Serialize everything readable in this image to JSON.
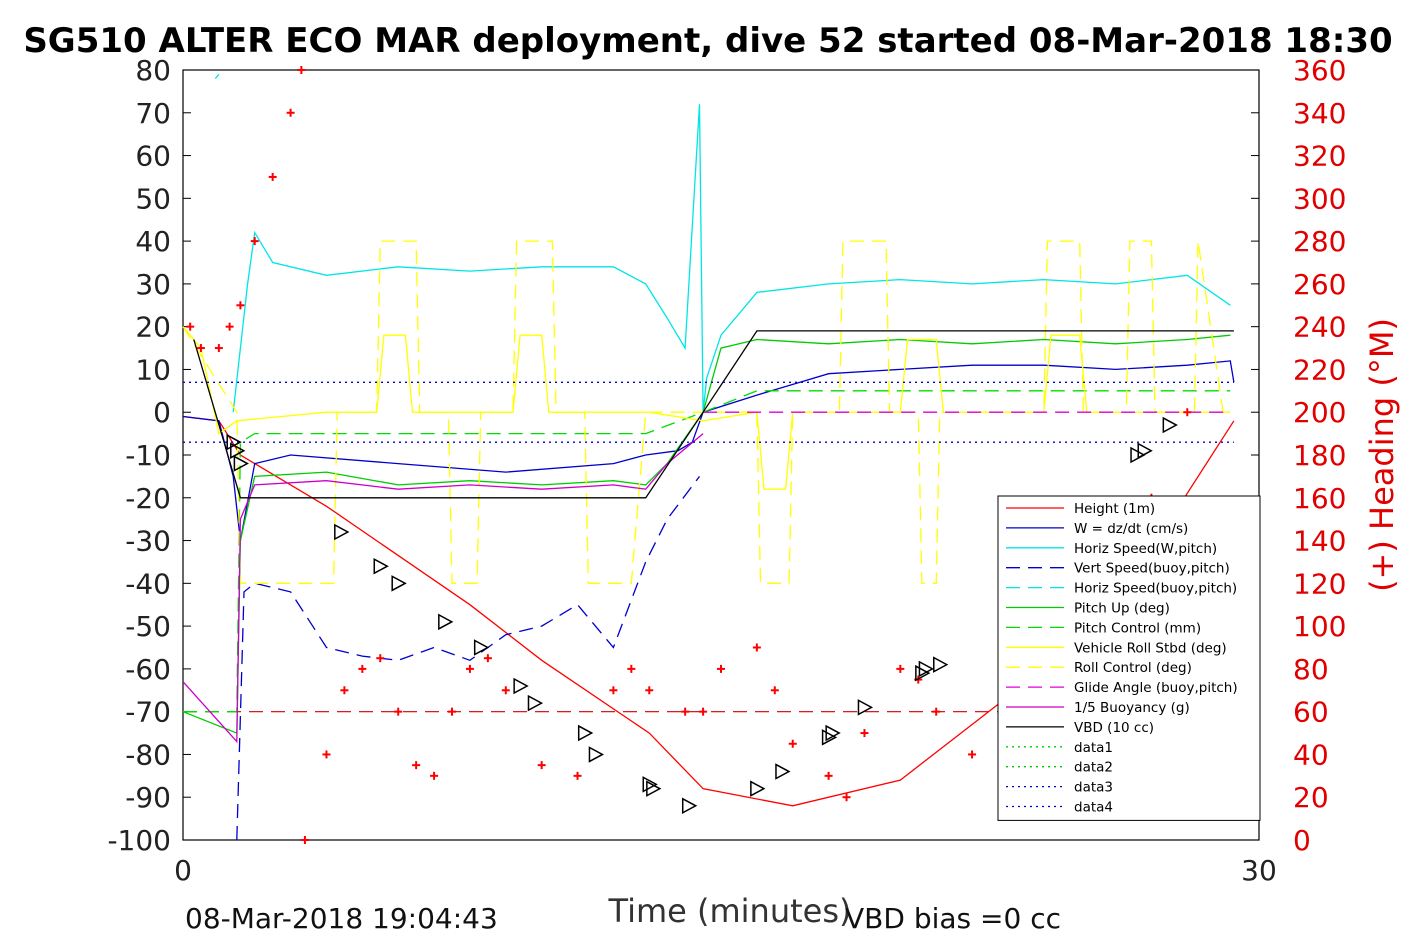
{
  "chart_data": {
    "type": "line",
    "title": "SG510 ALTER ECO MAR deployment, dive 52 started 08-Mar-2018 18:30",
    "xlabel": "Time (minutes)",
    "ylabel_left": "",
    "ylabel_right": "(+) Heading (°M)",
    "xlim": [
      0,
      30
    ],
    "ylim_left": [
      -100,
      80
    ],
    "ylim_right": [
      0,
      360
    ],
    "x_ticks": [
      "0",
      "30"
    ],
    "y_ticks_left": [
      "80",
      "70",
      "60",
      "50",
      "40",
      "30",
      "20",
      "10",
      "0",
      "-10",
      "-20",
      "-30",
      "-40",
      "-50",
      "-60",
      "-70",
      "-80",
      "-90",
      "-100"
    ],
    "y_ticks_right": [
      "360",
      "340",
      "320",
      "300",
      "280",
      "260",
      "240",
      "220",
      "200",
      "180",
      "160",
      "140",
      "120",
      "100",
      "80",
      "60",
      "40",
      "20",
      "0"
    ],
    "legend_position": "right",
    "colors": {
      "height": "#ff0000",
      "w": "#0000cc",
      "horiz_speed": "#00e5e5",
      "vert_speed": "#0000cc",
      "horiz_speed_buoy": "#00e5e5",
      "pitch_up": "#00cc00",
      "pitch_control": "#00dd00",
      "roll": "#ffff00",
      "roll_control": "#ffff00",
      "glide_angle": "#dd00dd",
      "buoyancy": "#cc00cc",
      "vbd": "#000000",
      "heading": "#ff0000"
    },
    "series": [
      {
        "name": "Height (1m)",
        "style": "solid",
        "color": "#ff0000",
        "x": [
          0,
          1,
          1.6,
          4,
          8,
          10,
          13,
          14.5,
          17,
          20,
          22,
          24,
          26,
          27,
          29.3
        ],
        "y": [
          -1,
          -2,
          -10,
          -22,
          -45,
          -58,
          -75,
          -88,
          -92,
          -86,
          -73,
          -60,
          -45,
          -32,
          -2
        ]
      },
      {
        "name": "W = dz/dt (cm/s)",
        "style": "solid",
        "color": "#0000cc",
        "x": [
          0,
          1,
          1.4,
          1.6,
          2,
          3,
          6,
          9,
          12,
          12.9,
          13.8,
          14.2,
          14.5,
          16,
          18,
          20,
          22,
          24,
          26,
          28,
          29.2,
          29.3
        ],
        "y": [
          -1,
          -2,
          -15,
          -30,
          -12,
          -10,
          -12,
          -14,
          -12,
          -10,
          -9,
          -7,
          0,
          4,
          9,
          10,
          11,
          11,
          10,
          11,
          12,
          7
        ]
      },
      {
        "name": "Horiz Speed(W,pitch)",
        "style": "solid",
        "color": "#00e5e5",
        "x": [
          1.4,
          1.8,
          2,
          2.5,
          4,
          6,
          8,
          10,
          12,
          12.9,
          13.5,
          14,
          14.4,
          14.5,
          14.6,
          15,
          16,
          18,
          20,
          22,
          24,
          26,
          28,
          29.2
        ],
        "y": [
          0,
          30,
          42,
          35,
          32,
          34,
          33,
          34,
          34,
          30,
          22,
          15,
          72,
          0,
          8,
          18,
          28,
          30,
          31,
          30,
          31,
          30,
          32,
          25
        ]
      },
      {
        "name": "Vert Speed(buoy,pitch)",
        "style": "dashed",
        "color": "#0000cc",
        "x": [
          1.5,
          1.7,
          2,
          3,
          4,
          5,
          6,
          7,
          8,
          9,
          10,
          11,
          12,
          12.9,
          13.5,
          14.4
        ],
        "y": [
          -100,
          -42,
          -40,
          -42,
          -55,
          -57,
          -58,
          -55,
          -58,
          -52,
          -50,
          -45,
          -55,
          -35,
          -25,
          -15
        ]
      },
      {
        "name": "Horiz Speed(buoy,pitch)",
        "style": "dashed",
        "color": "#00e5e5",
        "x": [
          0.9,
          1.0
        ],
        "y": [
          78,
          79
        ]
      },
      {
        "name": "Pitch Up (deg)",
        "style": "solid",
        "color": "#00cc00",
        "x": [
          0,
          1.5,
          1.6,
          2,
          4,
          6,
          8,
          10,
          12,
          12.9,
          13.5,
          14.5,
          15,
          16,
          18,
          20,
          22,
          24,
          26,
          28,
          29.2
        ],
        "y": [
          -70,
          -75,
          -30,
          -15,
          -14,
          -17,
          -16,
          -17,
          -16,
          -17,
          -12,
          0,
          15,
          17,
          16,
          17,
          16,
          17,
          16,
          17,
          18
        ]
      },
      {
        "name": "Pitch Control (mm)",
        "style": "dashed",
        "color": "#00dd00",
        "x": [
          0,
          1.5,
          1.6,
          2,
          12.9,
          14.5,
          16,
          29.2
        ],
        "y": [
          -70,
          -70,
          -7,
          -5,
          -5,
          0,
          5,
          5
        ]
      },
      {
        "name": "Vehicle Roll Stbd (deg)",
        "style": "solid",
        "color": "#ffff00",
        "x": [
          0,
          0.5,
          1,
          1.5,
          4,
          5.4,
          5.6,
          6.2,
          6.4,
          7,
          9.2,
          9.4,
          10,
          10.2,
          11,
          13,
          14.5,
          16,
          16.2,
          16.8,
          17,
          20,
          20.2,
          21,
          21.2,
          22,
          24,
          24.2,
          25,
          25.2,
          29.2
        ],
        "y": [
          20,
          15,
          -5,
          -2,
          0,
          0,
          18,
          18,
          0,
          0,
          0,
          18,
          18,
          0,
          0,
          0,
          -2,
          0,
          -18,
          -18,
          0,
          0,
          17,
          17,
          0,
          0,
          0,
          18,
          18,
          0,
          0
        ]
      },
      {
        "name": "Roll Control (deg)",
        "style": "dashed",
        "color": "#ffff00",
        "x": [
          0,
          1.5,
          1.6,
          4.2,
          4.3,
          5.4,
          5.5,
          6.5,
          6.6,
          7.4,
          7.5,
          8.2,
          8.3,
          9.2,
          9.3,
          10.3,
          10.4,
          11.2,
          11.3,
          12.5,
          12.9,
          14.5,
          16,
          16.1,
          16.9,
          17,
          18.3,
          18.4,
          19.6,
          19.7,
          20.5,
          20.6,
          21,
          21.1,
          22,
          22.1,
          24,
          24.1,
          25,
          25.1,
          26.3,
          26.4,
          27,
          27.1,
          28.2,
          28.3,
          29
        ],
        "y": [
          20,
          0,
          -40,
          -40,
          0,
          0,
          40,
          40,
          0,
          0,
          -40,
          -40,
          0,
          0,
          40,
          40,
          0,
          0,
          -40,
          -40,
          0,
          0,
          0,
          -40,
          -40,
          0,
          0,
          40,
          40,
          0,
          0,
          -40,
          -40,
          0,
          0,
          0,
          0,
          40,
          40,
          0,
          0,
          40,
          40,
          0,
          0,
          40,
          0
        ]
      },
      {
        "name": "Glide Angle (buoy,pitch)",
        "style": "dashed",
        "color": "#dd00dd",
        "x": [
          14.5,
          29.2
        ],
        "y": [
          0,
          0
        ]
      },
      {
        "name": "1/5 Buoyancy (g)",
        "style": "solid",
        "color": "#cc00cc",
        "x": [
          0,
          1.5,
          1.6,
          2,
          4,
          6,
          8,
          10,
          12,
          12.9,
          13.5,
          14.5
        ],
        "y": [
          -63,
          -77,
          -25,
          -17,
          -16,
          -18,
          -17,
          -18,
          -17,
          -18,
          -12,
          -5
        ]
      },
      {
        "name": "VBD (10 cc)",
        "style": "solid",
        "color": "#000000",
        "x": [
          0.3,
          1.6,
          12.9,
          14.5,
          16,
          29.3
        ],
        "y": [
          17,
          -20,
          -20,
          0,
          19,
          19
        ]
      },
      {
        "name": "data1",
        "style": "dotted",
        "color": "#00cc00",
        "x": [],
        "y": []
      },
      {
        "name": "data2",
        "style": "dotted",
        "color": "#00cc00",
        "x": [],
        "y": []
      },
      {
        "name": "data3",
        "style": "dotted",
        "color": "#0000cc",
        "x": [
          0,
          29.3
        ],
        "y": [
          7,
          7
        ]
      },
      {
        "name": "data4",
        "style": "dotted",
        "color": "#0000cc",
        "x": [
          0,
          29.3
        ],
        "y": [
          -7,
          -7
        ]
      }
    ],
    "reference_lines": [
      {
        "style": "dashed",
        "color": "#cc0000",
        "y": -70
      }
    ],
    "heading": {
      "axis": "right",
      "marker": "+",
      "color": "#ff0000",
      "x": [
        0.2,
        0.5,
        1,
        1.3,
        1.6,
        2,
        2.5,
        3,
        3.3,
        3.4,
        4,
        4.5,
        5,
        5.5,
        6,
        6.5,
        7,
        7.5,
        8,
        8.5,
        9,
        10,
        11,
        12,
        12.5,
        13,
        14,
        14.5,
        15,
        16,
        16.5,
        17,
        18,
        18.5,
        19,
        20,
        20.5,
        21,
        22,
        23,
        24,
        25,
        26,
        27,
        28
      ],
      "y": [
        240,
        230,
        230,
        240,
        250,
        280,
        310,
        340,
        360,
        0,
        40,
        70,
        80,
        85,
        60,
        35,
        30,
        60,
        80,
        85,
        70,
        35,
        30,
        70,
        80,
        70,
        60,
        60,
        80,
        90,
        70,
        45,
        30,
        20,
        50,
        80,
        75,
        60,
        40,
        20,
        40,
        80,
        120,
        160,
        200
      ]
    },
    "height_markers": {
      "marker": "triangle",
      "x": [
        1.4,
        1.5,
        1.6,
        4.4,
        5.5,
        6.0,
        7.3,
        8.3,
        9.4,
        9.8,
        11.2,
        11.5,
        13.0,
        13.1,
        14.1,
        16.0,
        16.7,
        18,
        18.1,
        19,
        20.6,
        20.7,
        21.1,
        26.6,
        26.8,
        27.5
      ],
      "y": [
        -7,
        -9,
        -12,
        -28,
        -36,
        -40,
        -49,
        -55,
        -64,
        -68,
        -75,
        -80,
        -87,
        -88,
        -92,
        -88,
        -84,
        -76,
        -75,
        -69,
        -61,
        -60,
        -59,
        -10,
        -9,
        -3
      ]
    },
    "footer_left": "08-Mar-2018 19:04:43",
    "footer_right": "VBD bias =0 cc"
  }
}
